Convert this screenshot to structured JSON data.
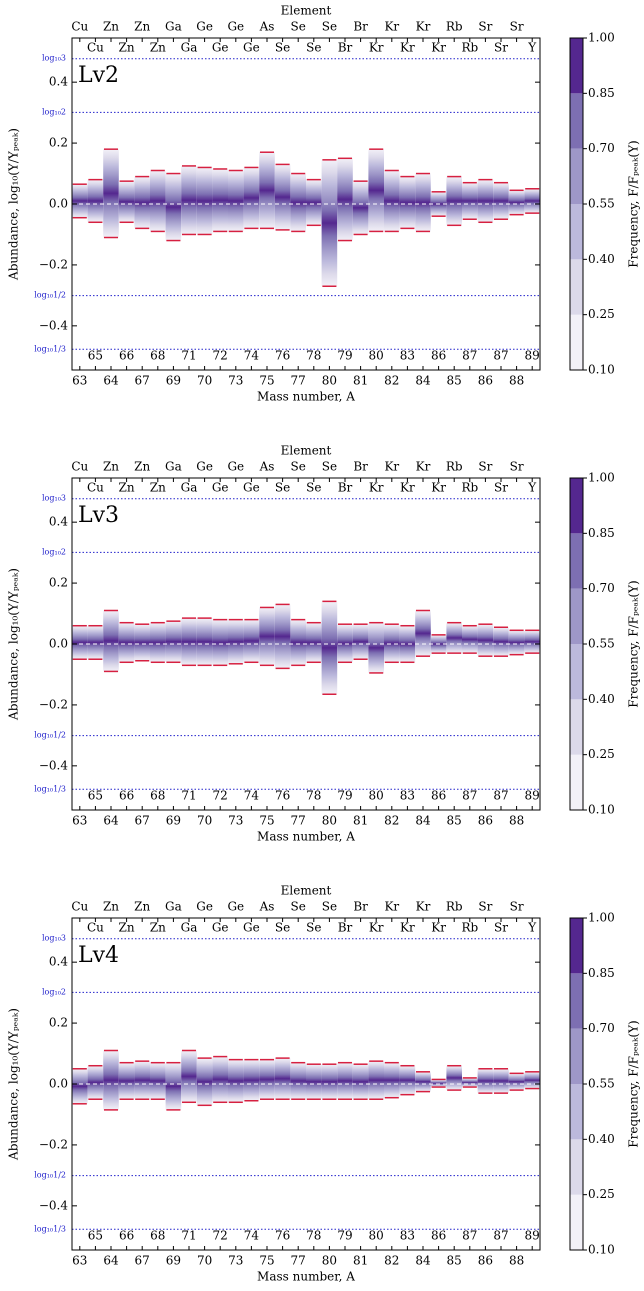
{
  "chart_data": [
    {
      "type": "band",
      "title": "Element",
      "label": "Lv2",
      "xlabel": "Mass number, A",
      "ylabel": "Abundance, log₁₀(Y/Yₚₑₐₖ)",
      "colorbar_label": "Frequency, F/Fₚₑₐₖ(Y)",
      "elements_top": [
        "Cu",
        "Zn",
        "Zn",
        "Ga",
        "Ge",
        "Ge",
        "As",
        "Se",
        "Se",
        "Br",
        "Kr",
        "Kr",
        "Rb",
        "Sr",
        "Sr"
      ],
      "elements_inner": [
        "Cu",
        "Zn",
        "Zn",
        "Ga",
        "Ge",
        "Ge",
        "Se",
        "Se",
        "Br",
        "Kr",
        "Kr",
        "Kr",
        "Rb",
        "Sr",
        "Y"
      ],
      "mass_bottom": [
        63,
        64,
        67,
        69,
        70,
        73,
        75,
        77,
        80,
        81,
        82,
        84,
        85,
        86,
        88
      ],
      "mass_inner": [
        65,
        66,
        68,
        71,
        72,
        74,
        76,
        78,
        79,
        80,
        83,
        86,
        87,
        87,
        89
      ],
      "upper": [
        0.065,
        0.08,
        0.18,
        0.075,
        0.09,
        0.11,
        0.1,
        0.125,
        0.12,
        0.115,
        0.11,
        0.12,
        0.17,
        0.13,
        0.1,
        0.08,
        0.145,
        0.15,
        0.075,
        0.18,
        0.11,
        0.09,
        0.1,
        0.04,
        0.09,
        0.07,
        0.08,
        0.07,
        0.045,
        0.05
      ],
      "lower": [
        -0.045,
        -0.06,
        -0.11,
        -0.06,
        -0.08,
        -0.09,
        -0.12,
        -0.1,
        -0.1,
        -0.09,
        -0.09,
        -0.08,
        -0.08,
        -0.085,
        -0.09,
        -0.07,
        -0.27,
        -0.12,
        -0.1,
        -0.09,
        -0.09,
        -0.08,
        -0.09,
        -0.04,
        -0.07,
        -0.05,
        -0.06,
        -0.05,
        -0.035,
        -0.03
      ],
      "ylim": [
        -0.545,
        0.545
      ],
      "yticks": [
        {
          "value": -0.4,
          "label": "−0.4"
        },
        {
          "value": -0.2,
          "label": "−0.2"
        },
        {
          "value": 0,
          "label": "0.0"
        },
        {
          "value": 0.2,
          "label": "0.2"
        },
        {
          "value": 0.4,
          "label": "0.4"
        }
      ],
      "reference_lines": [
        {
          "value": 0.477,
          "label": "log₁₀3"
        },
        {
          "value": 0.301,
          "label": "log₁₀2"
        },
        {
          "value": -0.301,
          "label": "log₁₀1/2"
        },
        {
          "value": -0.477,
          "label": "log₁₀1/3"
        }
      ],
      "colorbar_ticks": [
        {
          "value": 0.1,
          "label": "0.10"
        },
        {
          "value": 0.25,
          "label": "0.25"
        },
        {
          "value": 0.4,
          "label": "0.40"
        },
        {
          "value": 0.55,
          "label": "0.55"
        },
        {
          "value": 0.7,
          "label": "0.70"
        },
        {
          "value": 0.85,
          "label": "0.85"
        },
        {
          "value": 1,
          "label": "1.00"
        }
      ],
      "colorbar_colors": [
        "#f3f1f8",
        "#dcd9ea",
        "#bcb9dc",
        "#9e97c8",
        "#7d6fb2",
        "#54278f"
      ],
      "line_color": "#d62040"
    },
    {
      "type": "band",
      "title": "Element",
      "label": "Lv3",
      "xlabel": "Mass number, A",
      "ylabel": "Abundance, log₁₀(Y/Yₚₑₐₖ)",
      "colorbar_label": "Frequency, F/Fₚₑₐₖ(Y)",
      "elements_top": [
        "Cu",
        "Zn",
        "Zn",
        "Ga",
        "Ge",
        "Ge",
        "As",
        "Se",
        "Se",
        "Br",
        "Kr",
        "Kr",
        "Rb",
        "Sr",
        "Sr"
      ],
      "elements_inner": [
        "Cu",
        "Zn",
        "Zn",
        "Ga",
        "Ge",
        "Ge",
        "Se",
        "Se",
        "Br",
        "Kr",
        "Kr",
        "Kr",
        "Rb",
        "Sr",
        "Y"
      ],
      "mass_bottom": [
        63,
        64,
        67,
        69,
        70,
        73,
        75,
        77,
        80,
        81,
        82,
        84,
        85,
        86,
        88
      ],
      "mass_inner": [
        65,
        66,
        68,
        71,
        72,
        74,
        76,
        78,
        79,
        80,
        83,
        86,
        87,
        87,
        89
      ],
      "upper": [
        0.06,
        0.06,
        0.11,
        0.07,
        0.065,
        0.07,
        0.075,
        0.085,
        0.085,
        0.08,
        0.08,
        0.08,
        0.12,
        0.13,
        0.08,
        0.07,
        0.14,
        0.065,
        0.065,
        0.07,
        0.065,
        0.06,
        0.11,
        0.03,
        0.07,
        0.06,
        0.065,
        0.055,
        0.045,
        0.045
      ],
      "lower": [
        -0.05,
        -0.05,
        -0.09,
        -0.06,
        -0.055,
        -0.06,
        -0.06,
        -0.07,
        -0.07,
        -0.07,
        -0.065,
        -0.06,
        -0.07,
        -0.08,
        -0.07,
        -0.06,
        -0.165,
        -0.06,
        -0.05,
        -0.095,
        -0.06,
        -0.06,
        -0.04,
        -0.03,
        -0.03,
        -0.03,
        -0.04,
        -0.04,
        -0.035,
        -0.03
      ],
      "ylim": [
        -0.545,
        0.545
      ],
      "yticks": [
        {
          "value": -0.4,
          "label": "−0.4"
        },
        {
          "value": -0.2,
          "label": "−0.2"
        },
        {
          "value": 0,
          "label": "0.0"
        },
        {
          "value": 0.2,
          "label": "0.2"
        },
        {
          "value": 0.4,
          "label": "0.4"
        }
      ],
      "reference_lines": [
        {
          "value": 0.477,
          "label": "log₁₀3"
        },
        {
          "value": 0.301,
          "label": "log₁₀2"
        },
        {
          "value": -0.301,
          "label": "log₁₀1/2"
        },
        {
          "value": -0.477,
          "label": "log₁₀1/3"
        }
      ],
      "colorbar_ticks": [
        {
          "value": 0.1,
          "label": "0.10"
        },
        {
          "value": 0.25,
          "label": "0.25"
        },
        {
          "value": 0.4,
          "label": "0.40"
        },
        {
          "value": 0.55,
          "label": "0.55"
        },
        {
          "value": 0.7,
          "label": "0.70"
        },
        {
          "value": 0.85,
          "label": "0.85"
        },
        {
          "value": 1,
          "label": "1.00"
        }
      ],
      "colorbar_colors": [
        "#f3f1f8",
        "#dcd9ea",
        "#bcb9dc",
        "#9e97c8",
        "#7d6fb2",
        "#54278f"
      ],
      "line_color": "#d62040"
    },
    {
      "type": "band",
      "title": "Element",
      "label": "Lv4",
      "xlabel": "Mass number, A",
      "ylabel": "Abundance, log₁₀(Y/Yₚₑₐₖ)",
      "colorbar_label": "Frequency, F/Fₚₑₐₖ(Y)",
      "elements_top": [
        "Cu",
        "Zn",
        "Zn",
        "Ga",
        "Ge",
        "Ge",
        "As",
        "Se",
        "Se",
        "Br",
        "Kr",
        "Kr",
        "Rb",
        "Sr",
        "Sr"
      ],
      "elements_inner": [
        "Cu",
        "Zn",
        "Zn",
        "Ga",
        "Ge",
        "Ge",
        "Se",
        "Se",
        "Br",
        "Kr",
        "Kr",
        "Kr",
        "Rb",
        "Sr",
        "Y"
      ],
      "mass_bottom": [
        63,
        64,
        67,
        69,
        70,
        73,
        75,
        77,
        80,
        81,
        82,
        84,
        85,
        86,
        88
      ],
      "mass_inner": [
        65,
        66,
        68,
        71,
        72,
        74,
        76,
        78,
        79,
        80,
        83,
        86,
        87,
        87,
        89
      ],
      "upper": [
        0.05,
        0.06,
        0.11,
        0.07,
        0.075,
        0.07,
        0.07,
        0.11,
        0.085,
        0.09,
        0.08,
        0.08,
        0.08,
        0.085,
        0.07,
        0.065,
        0.065,
        0.07,
        0.065,
        0.075,
        0.07,
        0.06,
        0.04,
        0.015,
        0.06,
        0.02,
        0.05,
        0.05,
        0.035,
        0.04
      ],
      "lower": [
        -0.065,
        -0.05,
        -0.085,
        -0.05,
        -0.05,
        -0.05,
        -0.085,
        -0.06,
        -0.07,
        -0.06,
        -0.06,
        -0.055,
        -0.05,
        -0.05,
        -0.05,
        -0.05,
        -0.05,
        -0.05,
        -0.05,
        -0.05,
        -0.045,
        -0.035,
        -0.025,
        -0.01,
        -0.02,
        -0.01,
        -0.03,
        -0.03,
        -0.02,
        -0.015
      ],
      "ylim": [
        -0.545,
        0.545
      ],
      "yticks": [
        {
          "value": -0.4,
          "label": "−0.4"
        },
        {
          "value": -0.2,
          "label": "−0.2"
        },
        {
          "value": 0,
          "label": "0.0"
        },
        {
          "value": 0.2,
          "label": "0.2"
        },
        {
          "value": 0.4,
          "label": "0.4"
        }
      ],
      "reference_lines": [
        {
          "value": 0.477,
          "label": "log₁₀3"
        },
        {
          "value": 0.301,
          "label": "log₁₀2"
        },
        {
          "value": -0.301,
          "label": "log₁₀1/2"
        },
        {
          "value": -0.477,
          "label": "log₁₀1/3"
        }
      ],
      "colorbar_ticks": [
        {
          "value": 0.1,
          "label": "0.10"
        },
        {
          "value": 0.25,
          "label": "0.25"
        },
        {
          "value": 0.4,
          "label": "0.40"
        },
        {
          "value": 0.55,
          "label": "0.55"
        },
        {
          "value": 0.7,
          "label": "0.70"
        },
        {
          "value": 0.85,
          "label": "0.85"
        },
        {
          "value": 1,
          "label": "1.00"
        }
      ],
      "colorbar_colors": [
        "#f3f1f8",
        "#dcd9ea",
        "#bcb9dc",
        "#9e97c8",
        "#7d6fb2",
        "#54278f"
      ],
      "line_color": "#d62040"
    }
  ]
}
